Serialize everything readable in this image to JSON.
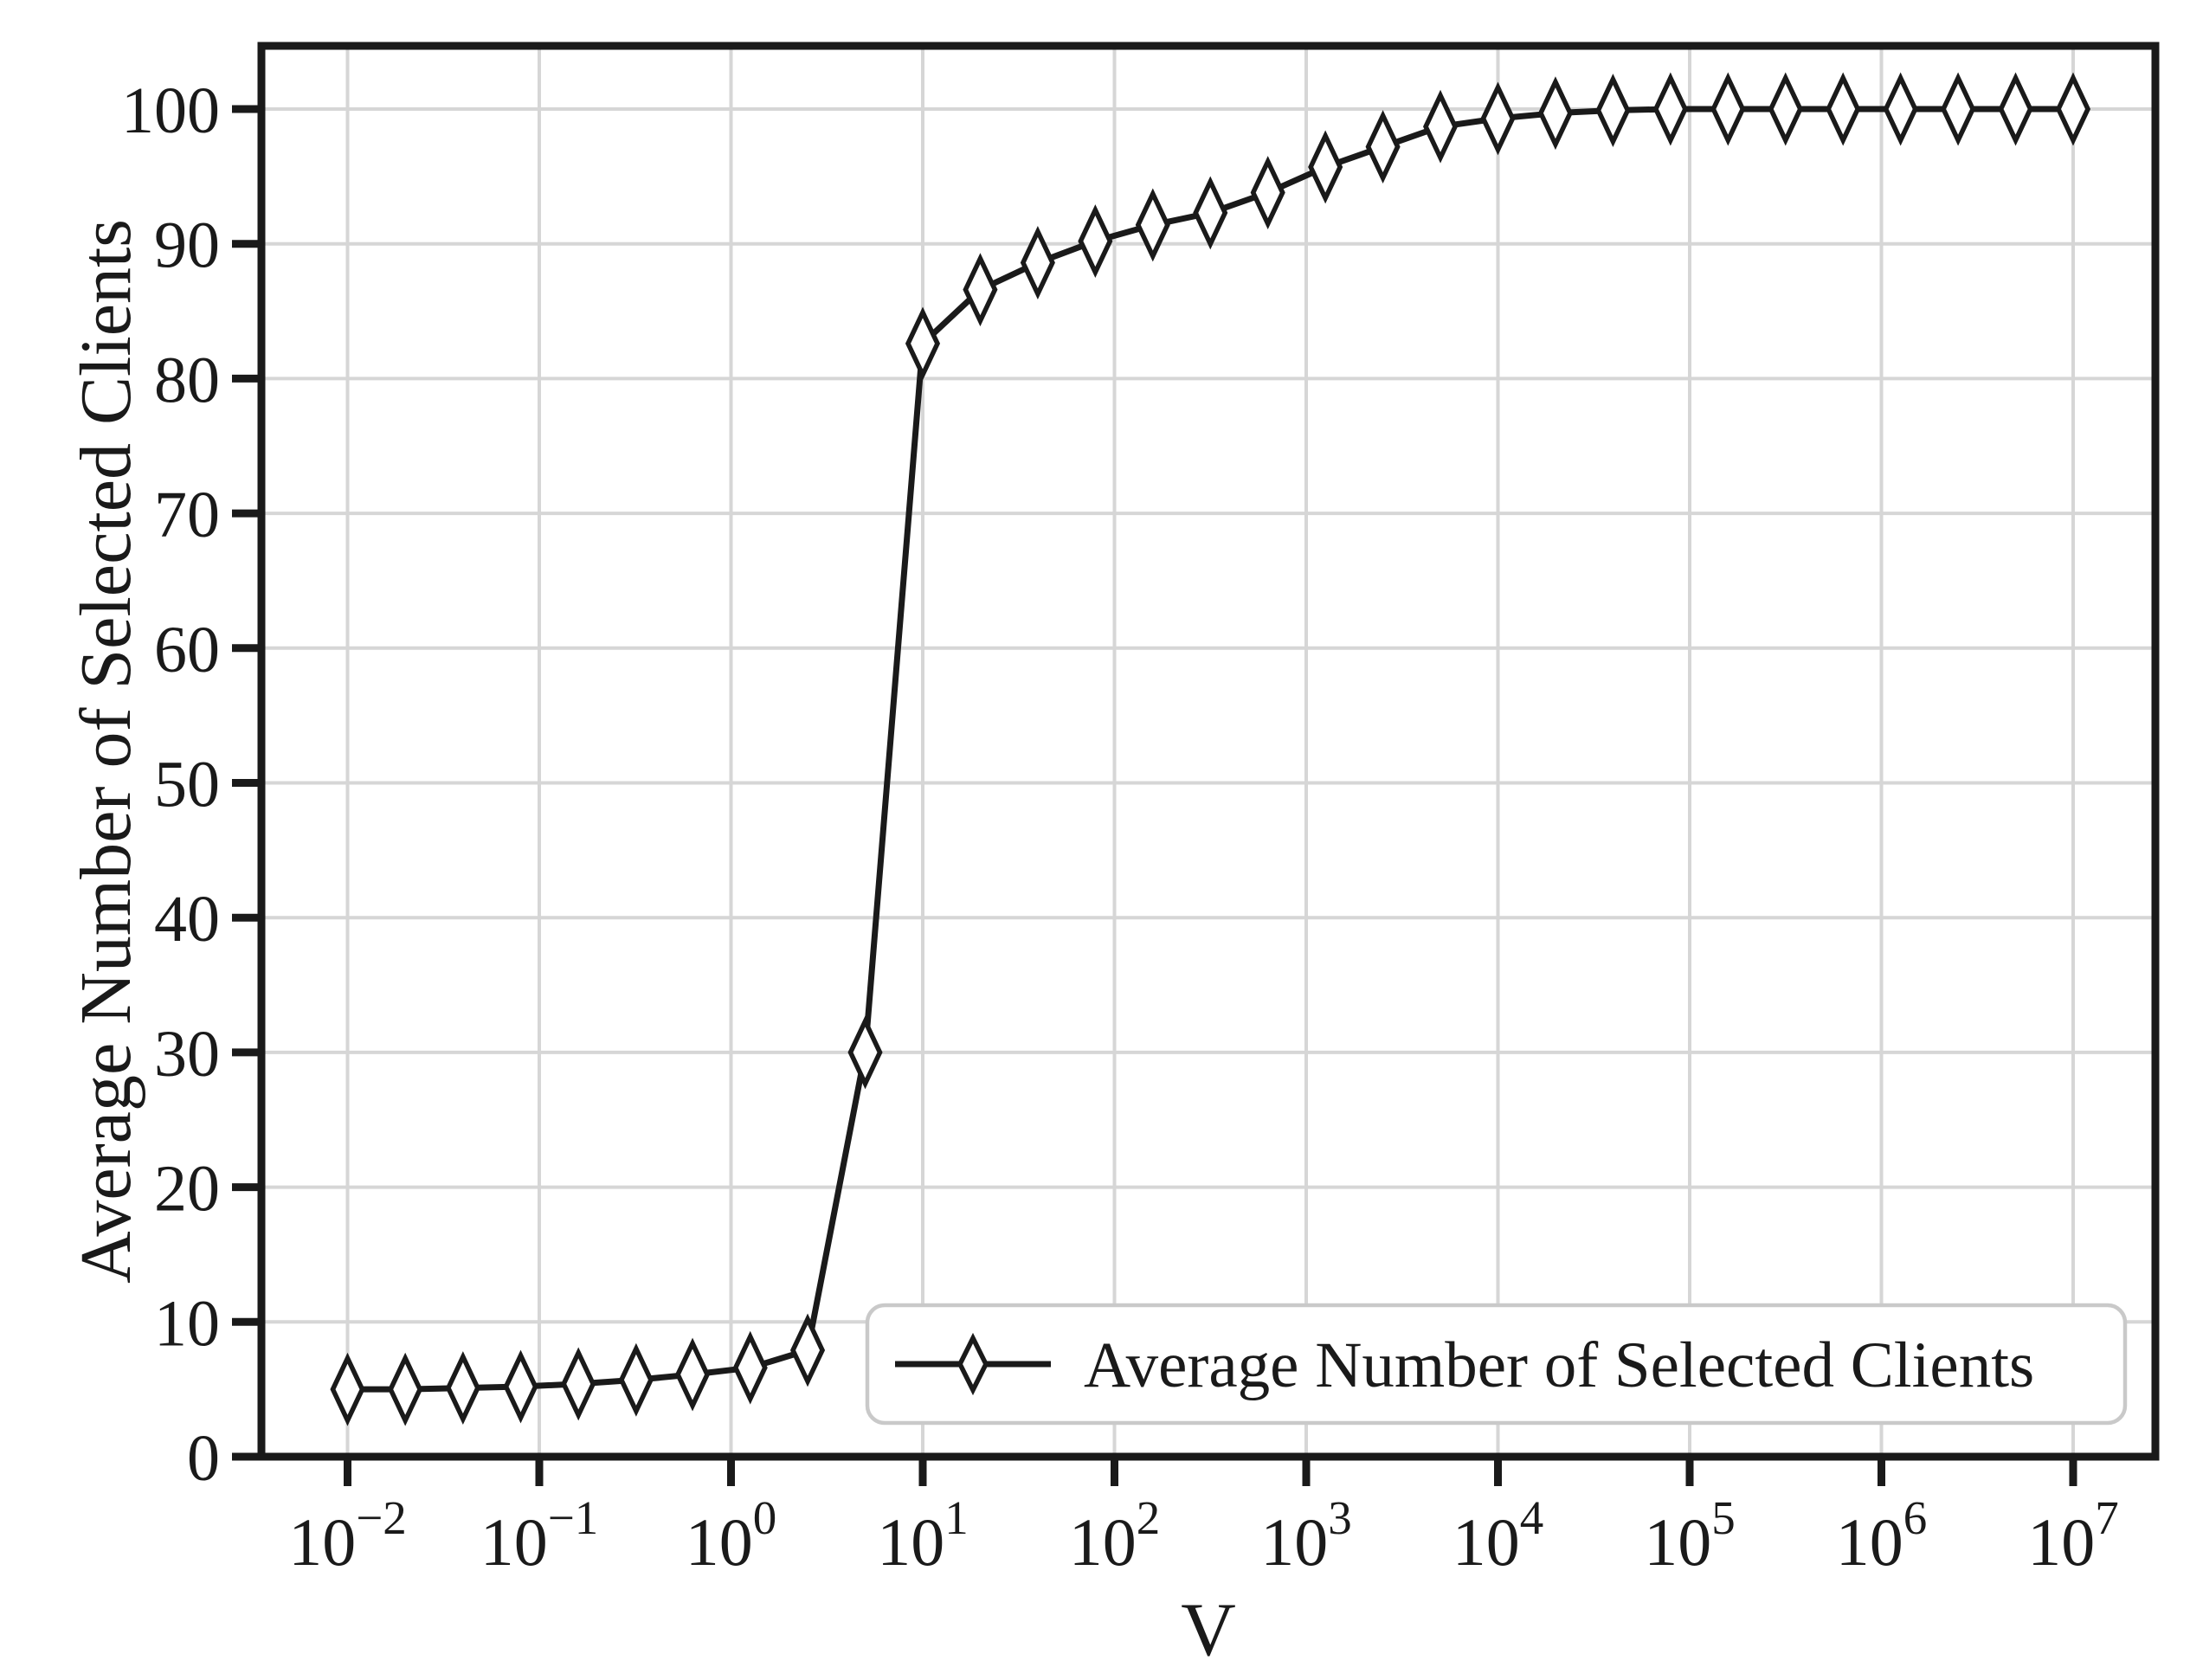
{
  "chart_data": {
    "type": "line",
    "title": "",
    "xlabel": "V",
    "ylabel": "Average Number of Selected Clients",
    "x_scale": "log",
    "xlim_exponents": [
      -2.49,
      7.43
    ],
    "ylim": [
      0,
      104.7
    ],
    "grid": true,
    "x_tick_exponents": [
      -2,
      -1,
      0,
      1,
      2,
      3,
      4,
      5,
      6,
      7
    ],
    "x_tick_labels_base": "10",
    "x_tick_exponent_labels": [
      "−2",
      "−1",
      "0",
      "1",
      "2",
      "3",
      "4",
      "5",
      "6",
      "7"
    ],
    "y_ticks": [
      0,
      10,
      20,
      30,
      40,
      50,
      60,
      70,
      80,
      90,
      100
    ],
    "y_tick_labels": [
      "0",
      "10",
      "20",
      "30",
      "40",
      "50",
      "60",
      "70",
      "80",
      "90",
      "100"
    ],
    "legend": {
      "position": "lower right",
      "entries": [
        "Average Number of Selected Clients"
      ]
    },
    "series": [
      {
        "name": "Average Number of Selected Clients",
        "marker": "thin-diamond-open",
        "color": "#1a1a1a",
        "x": [
          0.01,
          0.02,
          0.04,
          0.08,
          0.16,
          0.32,
          0.63,
          1.26,
          2.51,
          5.01,
          10,
          19.95,
          39.81,
          79.43,
          158.49,
          316.23,
          630.96,
          1258.93,
          2511.89,
          5011.87,
          10000,
          19952.62,
          39810.72,
          79432.82,
          158489.32,
          316227.77,
          630957.34,
          1258925.41,
          2511886.43,
          5011872.34,
          10000000
        ],
        "y": [
          5.0,
          5.0,
          5.1,
          5.2,
          5.4,
          5.7,
          6.1,
          6.6,
          7.9,
          30.0,
          82.6,
          86.6,
          88.6,
          90.2,
          91.4,
          92.3,
          93.8,
          95.7,
          97.2,
          98.7,
          99.3,
          99.7,
          99.9,
          100.0,
          100.0,
          100.0,
          100.0,
          100.0,
          100.0,
          100.0,
          100.0
        ]
      }
    ],
    "style": {
      "line_color": "#1a1a1a",
      "grid_color": "#d6d6d6",
      "frame_color": "#1a1a1a",
      "legend_border_color": "#c9c9c9",
      "background_color": "#ffffff",
      "marker_fill": "#ffffff"
    }
  }
}
